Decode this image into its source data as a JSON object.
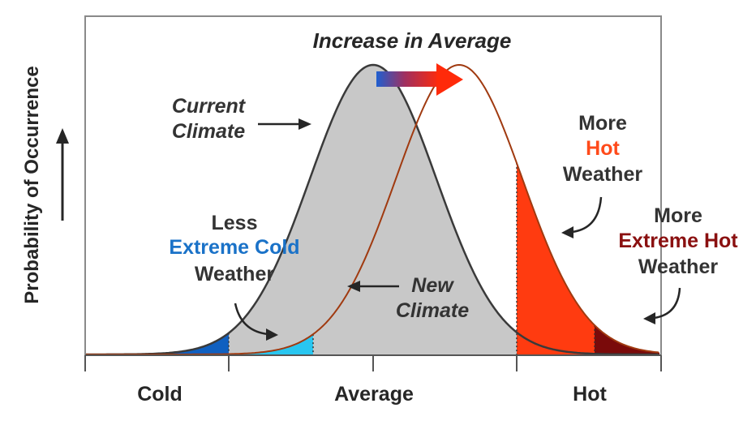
{
  "title": "Increase in Average",
  "y_axis_label": "Probability of Occurrence",
  "x_axis_ticks": [
    "Cold",
    "Average",
    "Hot"
  ],
  "current_climate": {
    "line1": "Current",
    "line2": "Climate"
  },
  "new_climate": {
    "line1": "New",
    "line2": "Climate"
  },
  "less_extreme_cold": {
    "line1": "Less",
    "line2": "Extreme Cold",
    "line3": "Weather"
  },
  "more_hot": {
    "line1": "More",
    "line2": "Hot",
    "line3": "Weather"
  },
  "more_extreme_hot": {
    "line1": "More",
    "line2": "Extreme Hot",
    "line3": "Weather"
  },
  "colors": {
    "current_fill": "#c8c8c8",
    "current_line": "#3a3a3a",
    "new_line": "#a03a10",
    "extreme_cold": "#1060c0",
    "less_cold": "#29c6f0",
    "hot": "#ff3b10",
    "extreme_hot": "#7a0a0a",
    "label_blue": "#1a72c8",
    "label_orange": "#ff4a1a",
    "label_darkred": "#8a1010"
  }
}
